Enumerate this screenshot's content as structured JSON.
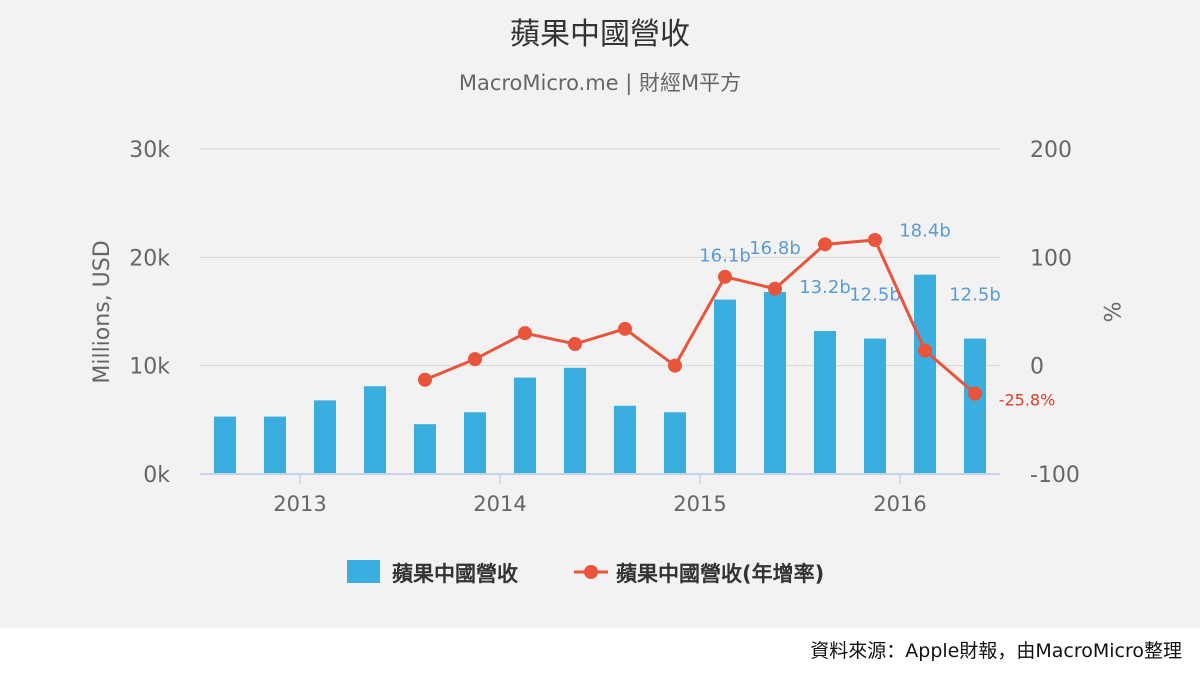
{
  "chart_data": {
    "type": "bar+line",
    "title": "蘋果中國營收",
    "subtitle": "MacroMicro.me | 財經M平方",
    "y_left_label": "Millions, USD",
    "y_right_label": "%",
    "y_left_range": [
      0,
      30000
    ],
    "y_left_ticks": [
      "0k",
      "10k",
      "20k",
      "30k"
    ],
    "y_right_range": [
      -100,
      200
    ],
    "y_right_ticks": [
      "-100",
      "0",
      "100",
      "200"
    ],
    "x_ticks": [
      "2013",
      "2014",
      "2015",
      "2016"
    ],
    "grid": true,
    "legend_position": "bottom-center",
    "colors": {
      "bar": "#3aaedf",
      "line": "#e8543c",
      "bar_label": "#5b9bd5",
      "line_label": "#e03a24"
    },
    "periods": [
      "2012Q3",
      "2012Q4",
      "2013Q1",
      "2013Q2",
      "2013Q3",
      "2013Q4",
      "2014Q1",
      "2014Q2",
      "2014Q3",
      "2014Q4",
      "2015Q1",
      "2015Q2",
      "2015Q3",
      "2015Q4",
      "2016Q1",
      "2016Q2"
    ],
    "series": [
      {
        "name": "蘋果中國營收",
        "type": "bar",
        "values": [
          5300,
          5300,
          6800,
          8100,
          4600,
          5700,
          8900,
          9800,
          6300,
          5700,
          16100,
          16800,
          13200,
          12500,
          18400,
          12500
        ],
        "labels": [
          "",
          "",
          "",
          "",
          "",
          "",
          "",
          "",
          "",
          "",
          "16.1b",
          "16.8b",
          "13.2b",
          "12.5b",
          "18.4b",
          "12.5b"
        ]
      },
      {
        "name": "蘋果中國營收(年增率)",
        "type": "line",
        "values": [
          null,
          null,
          null,
          null,
          -13,
          6,
          30,
          20,
          34,
          0,
          82,
          71,
          112,
          116,
          14,
          -25.8
        ],
        "labels": [
          "",
          "",
          "",
          "",
          "",
          "",
          "",
          "",
          "",
          "",
          "",
          "",
          "",
          "",
          "",
          "-25.8%"
        ]
      }
    ]
  },
  "footer": {
    "source": "資料來源：Apple財報，由MacroMicro整理"
  }
}
